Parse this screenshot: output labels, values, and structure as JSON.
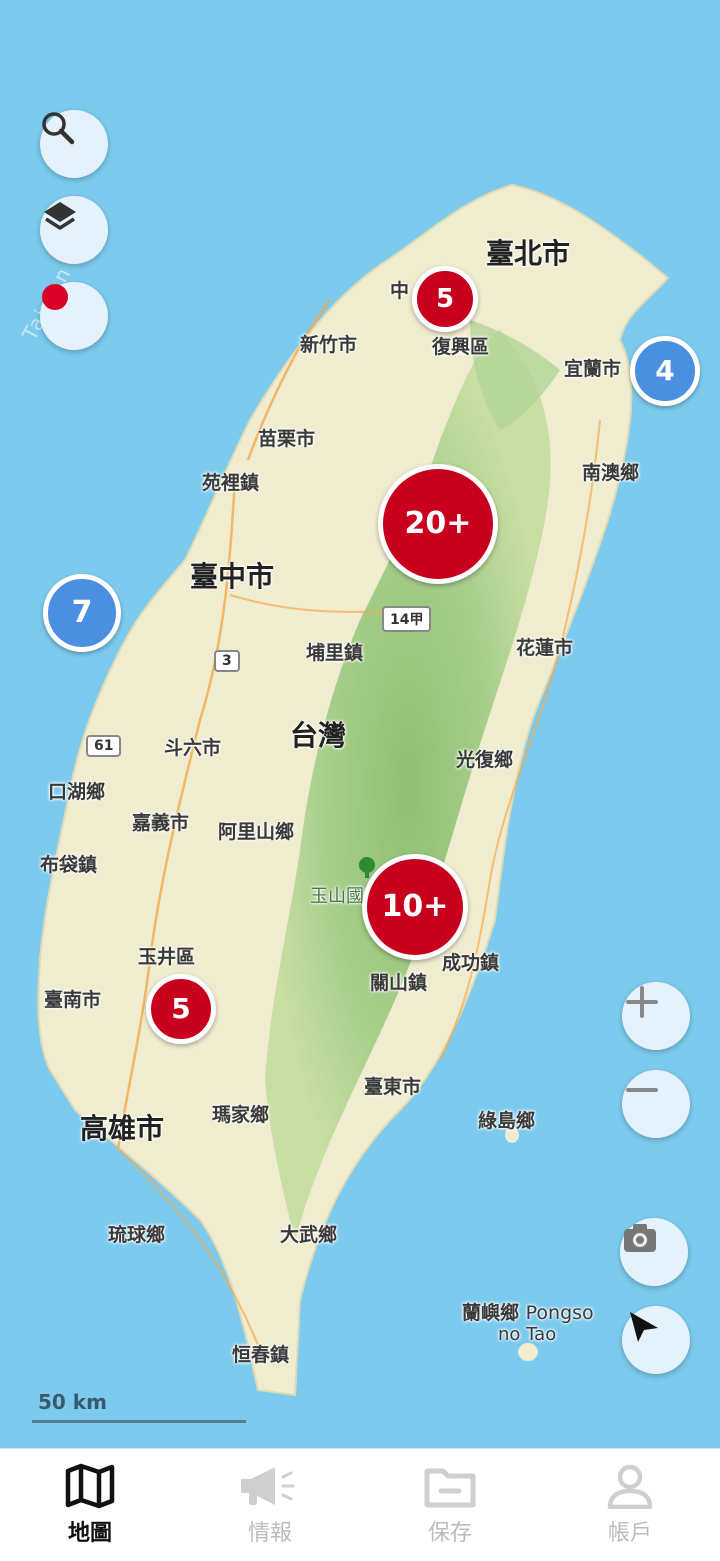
{
  "watermark": "Taiwan S...",
  "places": {
    "taipei": "臺北市",
    "zhong": "中",
    "fuxing": "復興區",
    "hsinchu": "新竹市",
    "yilan": "宜蘭市",
    "miaoli": "苗栗市",
    "yuanli": "苑裡鎮",
    "nanao": "南澳鄉",
    "taichung": "臺中市",
    "hualien": "花蓮市",
    "puli": "埔里鎮",
    "taiwan": "台灣",
    "douliu": "斗六市",
    "kouhu": "口湖鄉",
    "guangfu": "光復鄉",
    "chiayi": "嘉義市",
    "alishan": "阿里山鄉",
    "budai": "布袋鎮",
    "yushan": "玉山國",
    "yujing": "玉井區",
    "chenggong": "成功鎮",
    "tainan": "臺南市",
    "guanshan": "關山鎮",
    "taitung": "臺東市",
    "kaohsiung": "高雄市",
    "majia": "瑪家鄉",
    "ludao": "綠島鄉",
    "liuqiu": "琉球鄉",
    "dawu": "大武鄉",
    "lanyu_zh": "蘭嶼鄉",
    "lanyu_en1": "Pongso",
    "lanyu_en2": "no Tao",
    "hengchun": "恒春鎮"
  },
  "roads": {
    "r14": "14甲",
    "r3": "3",
    "r61": "61"
  },
  "clusters": {
    "north": "5",
    "yilan": "4",
    "central": "20+",
    "west": "7",
    "south_mtn": "10+",
    "tainan": "5"
  },
  "colors": {
    "cluster_red": "#c8001e",
    "cluster_blue": "#4a8fe0",
    "sea": "#7ccbee"
  },
  "icons": [
    "search-icon",
    "layers-icon",
    "record-icon",
    "plus-icon",
    "minus-icon",
    "camera-icon",
    "navigate-icon",
    "map-icon",
    "megaphone-icon",
    "folder-icon",
    "user-icon"
  ],
  "scale": {
    "label": "50 km"
  },
  "nav": {
    "map": "地圖",
    "info": "情報",
    "saved": "保存",
    "account": "帳戶"
  }
}
